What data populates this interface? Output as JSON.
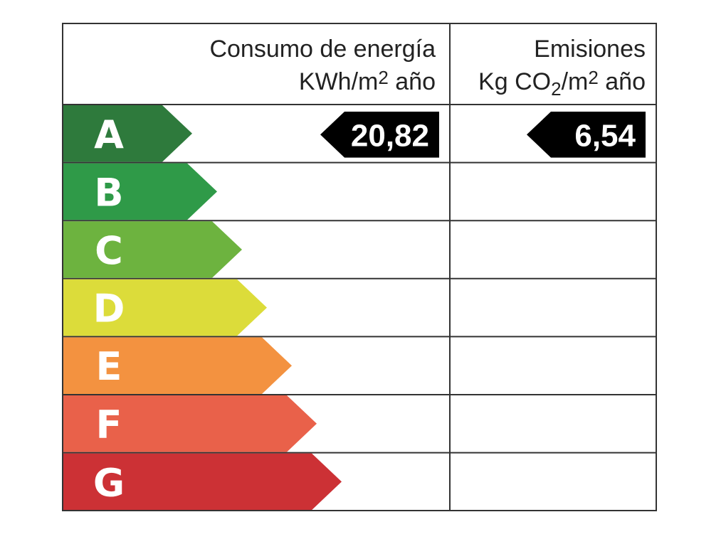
{
  "header": {
    "energy": {
      "title": "Consumo de energía",
      "unit": [
        "KWh/m",
        "2",
        " año"
      ]
    },
    "emissions": {
      "title": "Emisiones",
      "unit": [
        "Kg CO",
        "2",
        "/m",
        "2",
        " año"
      ]
    }
  },
  "rows": [
    {
      "letter": "A",
      "color": "#2e7a3c",
      "energy": "20,82",
      "emissions": "6,54"
    },
    {
      "letter": "B",
      "color": "#2f9a48"
    },
    {
      "letter": "C",
      "color": "#6db33f"
    },
    {
      "letter": "D",
      "color": "#dcdc3a"
    },
    {
      "letter": "E",
      "color": "#f39240"
    },
    {
      "letter": "F",
      "color": "#e9614a"
    },
    {
      "letter": "G",
      "color": "#cc3135"
    }
  ]
}
